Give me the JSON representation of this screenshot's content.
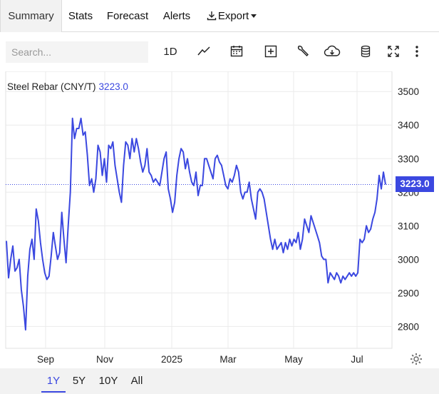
{
  "tabs": [
    {
      "label": "Summary"
    },
    {
      "label": "Stats"
    },
    {
      "label": "Forecast"
    },
    {
      "label": "Alerts"
    },
    {
      "label": "Export"
    }
  ],
  "toolbar": {
    "search_placeholder": "Search...",
    "interval_label": "1D",
    "tools": [
      "line-chart-icon",
      "calendar-icon",
      "plus-box-icon",
      "wrench-icon",
      "cloud-download-icon",
      "database-icon",
      "fullscreen-icon",
      "more-vertical-icon"
    ]
  },
  "legend": {
    "name": "Steel Rebar (CNY/T)",
    "value": "3223.0"
  },
  "last_price": "3223.0",
  "ranges": [
    {
      "label": "1Y",
      "active": true
    },
    {
      "label": "5Y",
      "active": false
    },
    {
      "label": "10Y",
      "active": false
    },
    {
      "label": "All",
      "active": false
    }
  ],
  "colors": {
    "line": "#3b48e0",
    "grid": "#e6e6e6",
    "tab_active_bg": "#f2f2f2"
  },
  "chart_data": {
    "type": "line",
    "x_tick_labels": [
      "Sep",
      "Nov",
      "2025",
      "Mar",
      "May",
      "Jul"
    ],
    "y_tick_labels": [
      "3500",
      "3400",
      "3300",
      "3200",
      "3100",
      "3000",
      "2900",
      "2800"
    ],
    "ylim": [
      2735,
      3560
    ],
    "y_ticks": [
      3500,
      3400,
      3300,
      3200,
      3100,
      3000,
      2900,
      2800
    ],
    "grid": true,
    "last_value": 3223.0,
    "series": [
      {
        "values": [
          3055,
          2945,
          3000,
          3040,
          2965,
          2975,
          3000,
          2910,
          2860,
          2790,
          2950,
          3030,
          3060,
          3000,
          3150,
          3115,
          3050,
          3000,
          2960,
          2940,
          2950,
          3010,
          3080,
          3040,
          3000,
          3020,
          3140,
          3060,
          2990,
          3100,
          3200,
          3420,
          3360,
          3390,
          3390,
          3420,
          3370,
          3380,
          3310,
          3220,
          3240,
          3200,
          3240,
          3340,
          3320,
          3250,
          3300,
          3230,
          3340,
          3330,
          3350,
          3280,
          3240,
          3200,
          3170,
          3280,
          3350,
          3340,
          3300,
          3360,
          3320,
          3360,
          3330,
          3290,
          3260,
          3280,
          3330,
          3260,
          3250,
          3230,
          3240,
          3230,
          3220,
          3260,
          3300,
          3320,
          3210,
          3180,
          3140,
          3170,
          3250,
          3300,
          3330,
          3320,
          3270,
          3300,
          3260,
          3230,
          3220,
          3260,
          3190,
          3220,
          3220,
          3300,
          3300,
          3280,
          3260,
          3240,
          3300,
          3310,
          3290,
          3280,
          3250,
          3220,
          3210,
          3240,
          3230,
          3250,
          3280,
          3260,
          3200,
          3180,
          3200,
          3200,
          3230,
          3180,
          3150,
          3120,
          3200,
          3210,
          3200,
          3180,
          3140,
          3100,
          3060,
          3030,
          3060,
          3030,
          3040,
          3050,
          3020,
          3050,
          3030,
          3060,
          3040,
          3060,
          3050,
          3080,
          3030,
          3060,
          3120,
          3100,
          3080,
          3130,
          3110,
          3090,
          3070,
          3050,
          3010,
          3000,
          3000,
          2930,
          2960,
          2950,
          2940,
          2960,
          2950,
          2930,
          2950,
          2940,
          2950,
          2960,
          2950,
          2960,
          2950,
          2960,
          3060,
          3050,
          3060,
          3100,
          3080,
          3090,
          3120,
          3140,
          3180,
          3250,
          3210,
          3260,
          3223
        ]
      }
    ]
  }
}
